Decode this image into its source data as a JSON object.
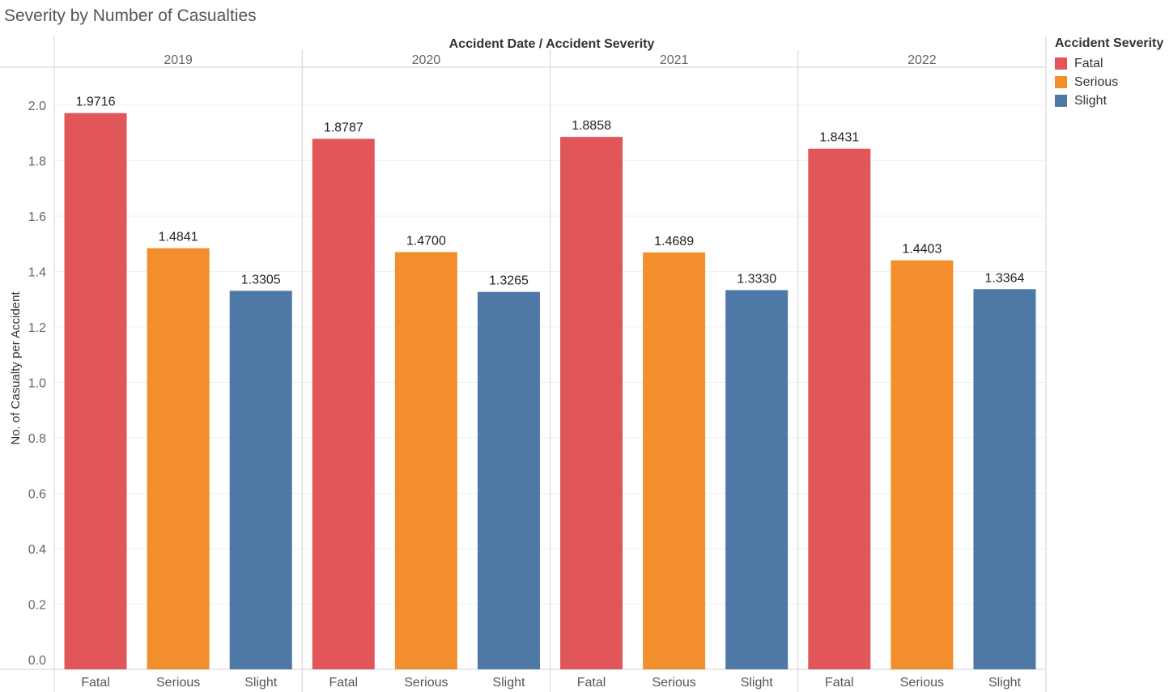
{
  "page_title": "Severity by Number of Casualties",
  "header_label": "Accident Date  /  Accident Severity",
  "legend": {
    "title": "Accident Severity",
    "items": [
      {
        "label": "Fatal",
        "color": "#E15759"
      },
      {
        "label": "Serious",
        "color": "#F28E2B"
      },
      {
        "label": "Slight",
        "color": "#4E79A7"
      }
    ]
  },
  "chart_data": {
    "type": "bar",
    "title": "Severity by Number of Casualties",
    "ylabel": "No. of Casualty per Accident",
    "ylim": [
      0,
      2.1
    ],
    "yticks": [
      "0.0",
      "0.2",
      "0.4",
      "0.6",
      "0.8",
      "1.0",
      "1.2",
      "1.4",
      "1.6",
      "1.8",
      "2.0"
    ],
    "grid": true,
    "groups": [
      {
        "year": "2019",
        "bars": [
          {
            "category": "Fatal",
            "value": 1.9716,
            "label": "1.9716"
          },
          {
            "category": "Serious",
            "value": 1.4841,
            "label": "1.4841"
          },
          {
            "category": "Slight",
            "value": 1.3305,
            "label": "1.3305"
          }
        ]
      },
      {
        "year": "2020",
        "bars": [
          {
            "category": "Fatal",
            "value": 1.8787,
            "label": "1.8787"
          },
          {
            "category": "Serious",
            "value": 1.47,
            "label": "1.4700"
          },
          {
            "category": "Slight",
            "value": 1.3265,
            "label": "1.3265"
          }
        ]
      },
      {
        "year": "2021",
        "bars": [
          {
            "category": "Fatal",
            "value": 1.8858,
            "label": "1.8858"
          },
          {
            "category": "Serious",
            "value": 1.4689,
            "label": "1.4689"
          },
          {
            "category": "Slight",
            "value": 1.333,
            "label": "1.3330"
          }
        ]
      },
      {
        "year": "2022",
        "bars": [
          {
            "category": "Fatal",
            "value": 1.8431,
            "label": "1.8431"
          },
          {
            "category": "Serious",
            "value": 1.4403,
            "label": "1.4403"
          },
          {
            "category": "Slight",
            "value": 1.3364,
            "label": "1.3364"
          }
        ]
      }
    ]
  }
}
